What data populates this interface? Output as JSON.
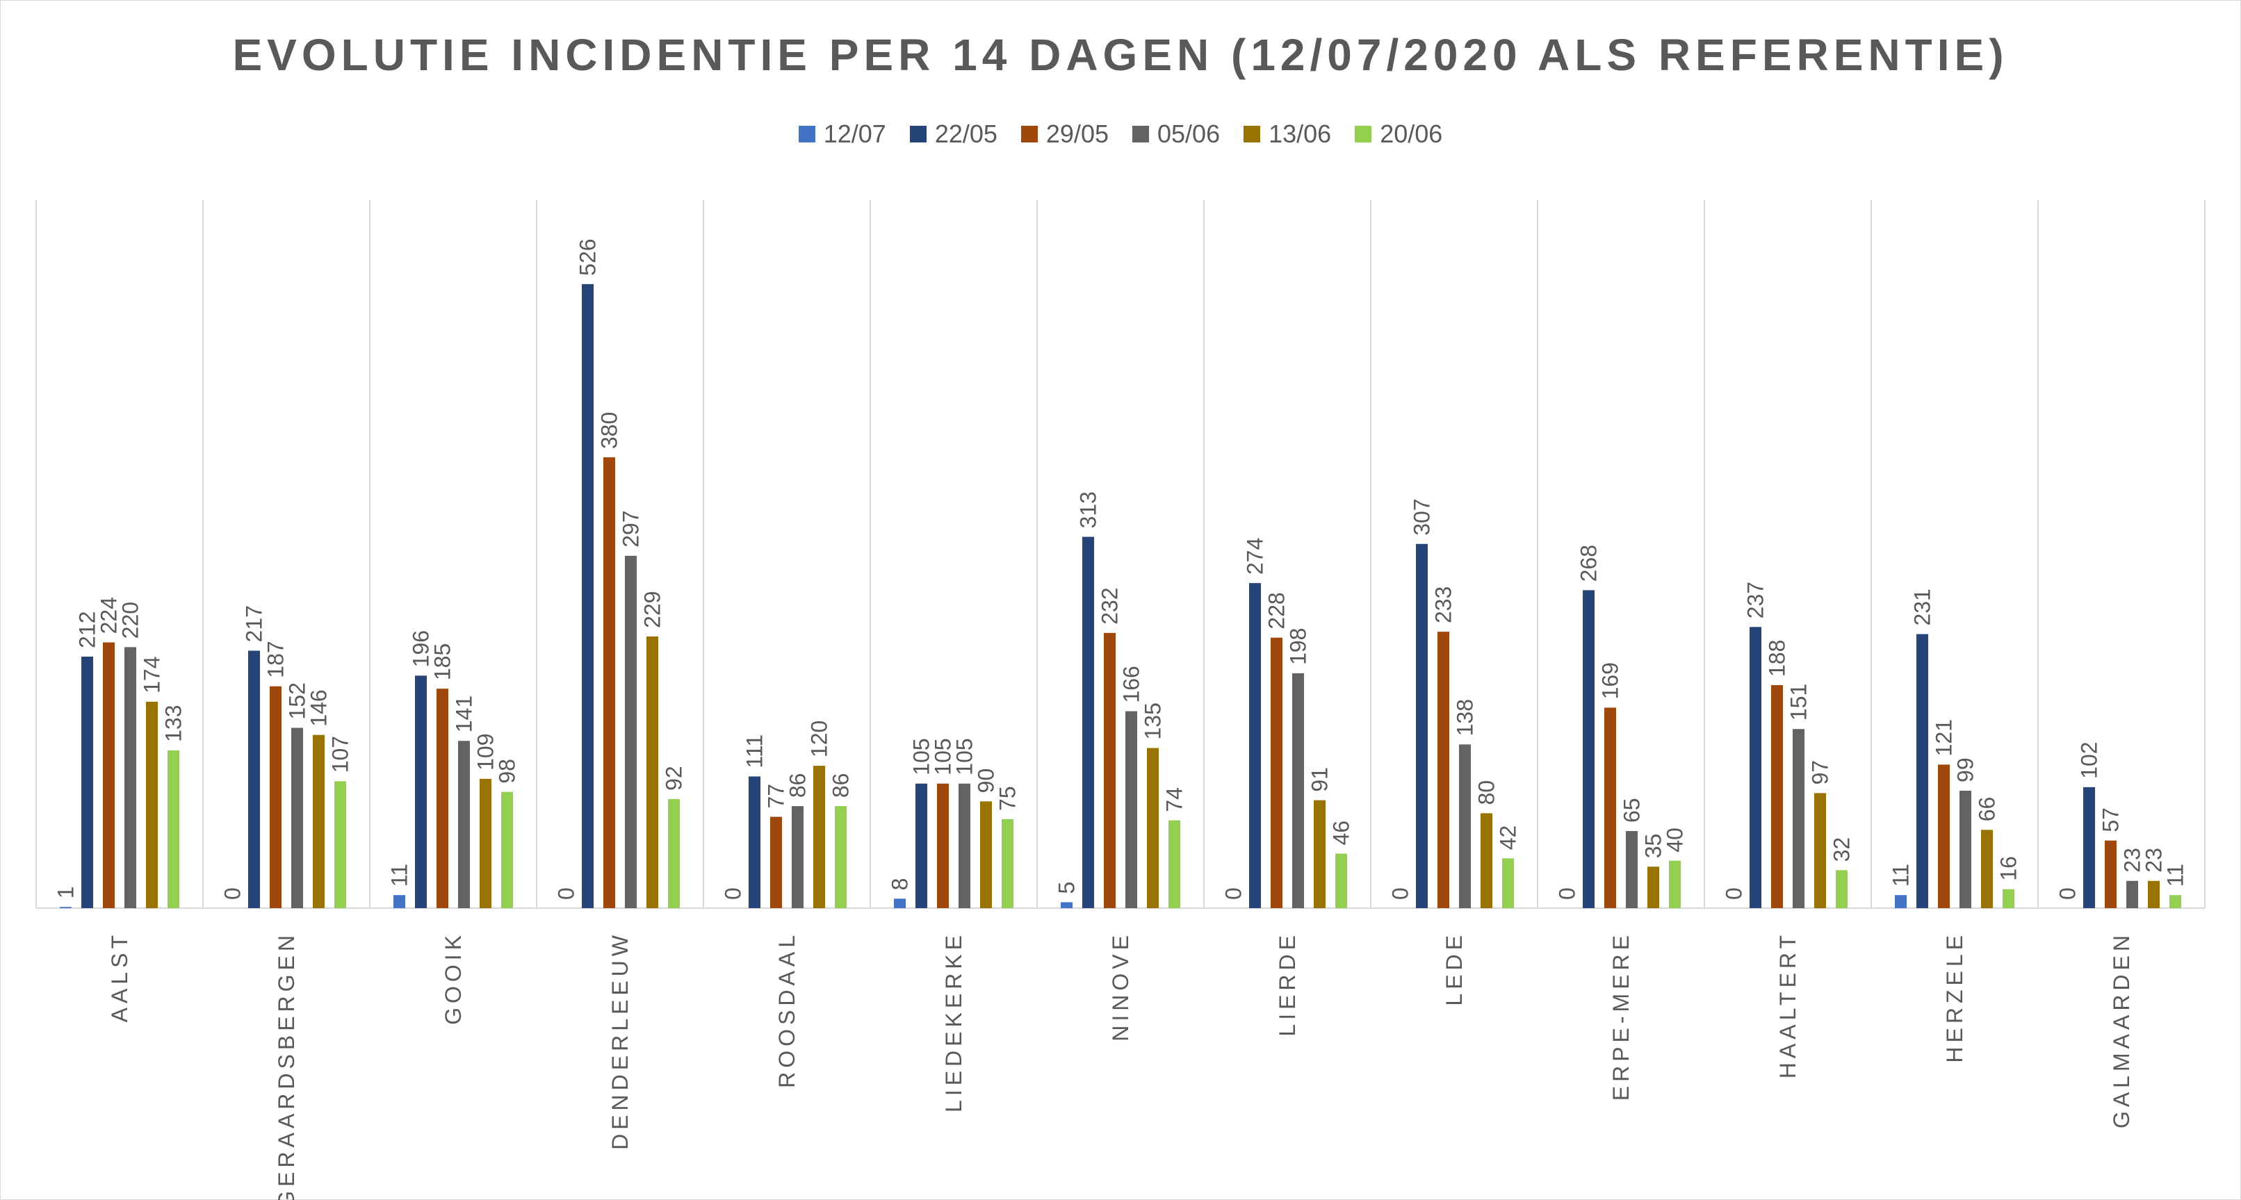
{
  "chart_data": {
    "type": "bar",
    "title": "EVOLUTIE INCIDENTIE PER 14 DAGEN (12/07/2020 ALS REFERENTIE)",
    "categories": [
      "AALST",
      "GERAARDSBERGEN",
      "GOOIK",
      "DENDERLEEUW",
      "ROOSDAAL",
      "LIEDEKERKE",
      "NINOVE",
      "LIERDE",
      "LEDE",
      "ERPE-MERE",
      "HAALTERT",
      "HERZELE",
      "GALMAARDEN"
    ],
    "series": [
      {
        "name": "12/07",
        "color": "#4472c4",
        "values": [
          1,
          0,
          11,
          0,
          0,
          8,
          5,
          0,
          0,
          0,
          0,
          11,
          0
        ]
      },
      {
        "name": "22/05",
        "color": "#264478",
        "values": [
          212,
          217,
          196,
          526,
          111,
          105,
          313,
          274,
          307,
          268,
          237,
          231,
          102
        ]
      },
      {
        "name": "29/05",
        "color": "#9e480e",
        "values": [
          224,
          187,
          185,
          380,
          77,
          105,
          232,
          228,
          233,
          169,
          188,
          121,
          57
        ]
      },
      {
        "name": "05/06",
        "color": "#636363",
        "values": [
          220,
          152,
          141,
          297,
          86,
          105,
          166,
          198,
          138,
          65,
          151,
          99,
          23
        ]
      },
      {
        "name": "13/06",
        "color": "#997300",
        "values": [
          174,
          146,
          109,
          229,
          120,
          90,
          135,
          91,
          80,
          35,
          97,
          66,
          23
        ]
      },
      {
        "name": "20/06",
        "color": "#92d050",
        "values": [
          133,
          107,
          98,
          92,
          86,
          75,
          74,
          46,
          42,
          40,
          32,
          16,
          11
        ]
      }
    ],
    "ylim": [
      0,
      600
    ],
    "grid": "vertical category separators",
    "legend_position": "top",
    "data_labels": true
  }
}
